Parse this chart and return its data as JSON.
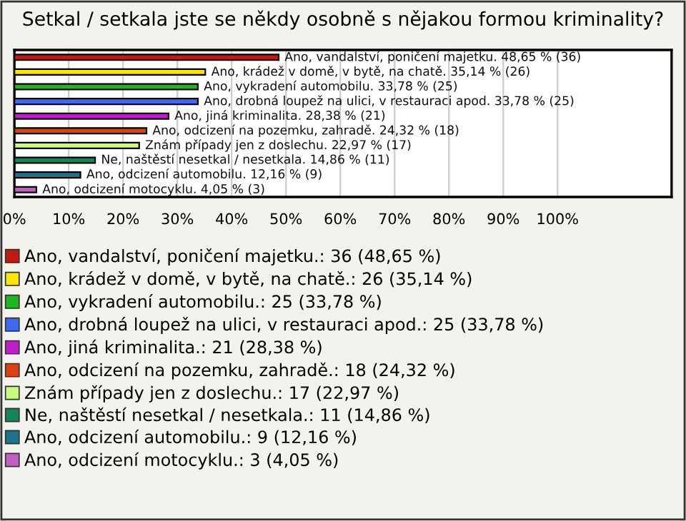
{
  "chart_data": {
    "type": "bar",
    "orientation": "horizontal",
    "title": "Setkal / setkala jste se někdy osobně s nějakou formou kriminality?",
    "categories": [
      null,
      null,
      null,
      null,
      null,
      null,
      null,
      null,
      null,
      null
    ],
    "series": [
      {
        "name": "Ano, vandalství, poničení majetku.: 36 (48,65 %)",
        "color": "#c41a0e",
        "values": [
          48.65,
          null,
          null,
          null,
          null,
          null,
          null,
          null,
          null,
          null
        ],
        "value_labels": [
          "Ano, vandalství, poničení majetku. 48,65 % (36)",
          null,
          null,
          null,
          null,
          null,
          null,
          null,
          null,
          null
        ]
      },
      {
        "name": "Ano, krádež v domě, v bytě, na chatě.: 26 (35,14 %)",
        "color": "#ffe600",
        "values": [
          null,
          35.14,
          null,
          null,
          null,
          null,
          null,
          null,
          null,
          null
        ],
        "value_labels": [
          null,
          "Ano, krádež v domě, v bytě, na chatě. 35,14 % (26)",
          null,
          null,
          null,
          null,
          null,
          null,
          null,
          null
        ]
      },
      {
        "name": "Ano, vykradení automobilu.: 25 (33,78 %)",
        "color": "#1cb81c",
        "values": [
          null,
          null,
          33.78,
          null,
          null,
          null,
          null,
          null,
          null,
          null
        ],
        "value_labels": [
          null,
          null,
          "Ano, vykradení automobilu. 33,78 % (25)",
          null,
          null,
          null,
          null,
          null,
          null,
          null
        ]
      },
      {
        "name": "Ano, drobná loupež na ulici, v restauraci apod.: 25 (33,78 %)",
        "color": "#3d6af5",
        "values": [
          null,
          null,
          null,
          33.78,
          null,
          null,
          null,
          null,
          null,
          null
        ],
        "value_labels": [
          null,
          null,
          null,
          "Ano, drobná loupež na ulici, v restauraci apod. 33,78 % (25)",
          null,
          null,
          null,
          null,
          null,
          null
        ]
      },
      {
        "name": "Ano, jiná kriminalita.: 21 (28,38 %)",
        "color": "#c21ccc",
        "values": [
          null,
          null,
          null,
          null,
          28.38,
          null,
          null,
          null,
          null,
          null
        ],
        "value_labels": [
          null,
          null,
          null,
          null,
          "Ano, jiná kriminalita. 28,38 % (21)",
          null,
          null,
          null,
          null,
          null
        ]
      },
      {
        "name": "Ano, odcizení na pozemku, zahradě.: 18 (24,32 %)",
        "color": "#e0400e",
        "values": [
          null,
          null,
          null,
          null,
          null,
          24.32,
          null,
          null,
          null,
          null
        ],
        "value_labels": [
          null,
          null,
          null,
          null,
          null,
          "Ano, odcizení na pozemku, zahradě. 24,32 % (18)",
          null,
          null,
          null,
          null
        ]
      },
      {
        "name": "Znám případy jen z doslechu.: 17 (22,97 %)",
        "color": "#c6fb7c",
        "values": [
          null,
          null,
          null,
          null,
          null,
          null,
          22.97,
          null,
          null,
          null
        ],
        "value_labels": [
          null,
          null,
          null,
          null,
          null,
          null,
          "Znám případy jen z doslechu. 22,97 % (17)",
          null,
          null,
          null
        ]
      },
      {
        "name": "Ne, naštěstí nesetkal / nesetkala.: 11 (14,86 %)",
        "color": "#11875a",
        "values": [
          null,
          null,
          null,
          null,
          null,
          null,
          null,
          14.86,
          null,
          null
        ],
        "value_labels": [
          null,
          null,
          null,
          null,
          null,
          null,
          null,
          "Ne, naštěstí nesetkal / nesetkala. 14,86 % (11)",
          null,
          null
        ]
      },
      {
        "name": "Ano, odcizení automobilu.: 9 (12,16 %)",
        "color": "#1d7488",
        "values": [
          null,
          null,
          null,
          null,
          null,
          null,
          null,
          null,
          12.16,
          null
        ],
        "value_labels": [
          null,
          null,
          null,
          null,
          null,
          null,
          null,
          null,
          "Ano, odcizení automobilu. 12,16 % (9)",
          null
        ]
      },
      {
        "name": "Ano, odcizení motocyklu.: 3 (4,05 %)",
        "color": "#c060c0",
        "values": [
          null,
          null,
          null,
          null,
          null,
          null,
          null,
          null,
          null,
          4.05
        ],
        "value_labels": [
          null,
          null,
          null,
          null,
          null,
          null,
          null,
          null,
          null,
          "Ano, odcizení motocyklu. 4,05 % (3)"
        ]
      }
    ],
    "xlim": [
      0,
      121
    ],
    "xticks": [
      {
        "value": 0,
        "label": "0%"
      },
      {
        "value": 10,
        "label": "10%"
      },
      {
        "value": 20,
        "label": "20%"
      },
      {
        "value": 30,
        "label": "30%"
      },
      {
        "value": 40,
        "label": "40%"
      },
      {
        "value": 50,
        "label": "50%"
      },
      {
        "value": 60,
        "label": "60%"
      },
      {
        "value": 70,
        "label": "70%"
      },
      {
        "value": 80,
        "label": "80%"
      },
      {
        "value": 90,
        "label": "90%"
      },
      {
        "value": 100,
        "label": "100%"
      }
    ],
    "grid": "x",
    "legend": "bottom",
    "tick_labels": "x"
  }
}
